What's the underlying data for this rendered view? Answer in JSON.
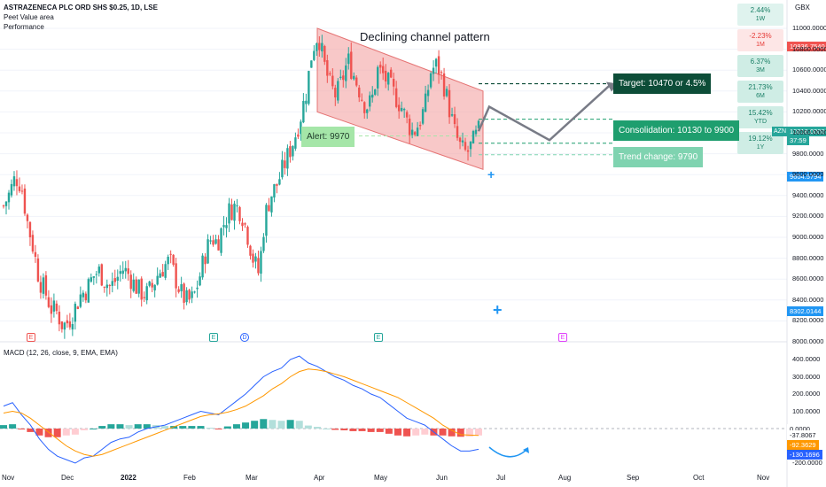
{
  "header": {
    "symbol": "ASTRAZENECA PLC ORD SHS $0.25, 1D, LSE",
    "indicator1": "Peet Value area",
    "indicator2": "Performance"
  },
  "currency": "GBX",
  "performance": [
    {
      "value": "2.44%",
      "period": "1W",
      "tone": "pos"
    },
    {
      "value": "-2.23%",
      "period": "1M",
      "tone": "neg"
    },
    {
      "value": "6.37%",
      "period": "3M",
      "tone": "pos"
    },
    {
      "value": "21.73%",
      "period": "6M",
      "tone": "pos"
    },
    {
      "value": "15.42%",
      "period": "YTD",
      "tone": "pos"
    },
    {
      "value": "19.12%",
      "period": "1Y",
      "tone": "pos"
    }
  ],
  "price_tags": {
    "red": "10836.7540",
    "symbol": "AZN",
    "last": "10016.0000",
    "countdown": "37:59",
    "blue1": "9604.5794",
    "blue2": "8302.0144"
  },
  "macd_tags": {
    "zero": "0.0000",
    "orange": "-37.8067",
    "red": "-92.3629",
    "blue": "-130.1696"
  },
  "annotations": {
    "channel_title": "Declining channel pattern",
    "target": "Target: 10470 or 4.5%",
    "consolidation": "Consolidation: 10130 to 9900",
    "trend_change": "Trend change: 9790",
    "alert": "Alert: 9970"
  },
  "macd_label": "MACD (12, 26, close, 9, EMA, EMA)",
  "events": [
    "E",
    "E",
    "D",
    "E",
    "E"
  ],
  "colors": {
    "up": "#26a69a",
    "down": "#ef5350",
    "macd": "#2962ff",
    "signal": "#ff9800",
    "channel": "#f4a3a3",
    "target_box": "#0d4d38",
    "consol_box": "#1e9e6e",
    "trend_box": "#7fd3b0",
    "alert_box": "#a5e6a8"
  },
  "chart_data": {
    "type": "candlestick",
    "price_axis": {
      "ticks": [
        8000,
        8200,
        8400,
        8600,
        8800,
        9000,
        9200,
        9400,
        9600,
        9800,
        10000,
        10200,
        10400,
        10600,
        10800,
        11000
      ],
      "labels": [
        "8000.0000",
        "8200.0000",
        "8400.0000",
        "8600.0000",
        "8800.0000",
        "9000.0000",
        "9200.0000",
        "9400.0000",
        "9600.0000",
        "9800.0000",
        "10000.0000",
        "10200.0000",
        "10400.0000",
        "10600.0000",
        "10800.0000",
        "11000.0000"
      ],
      "ylim": [
        8000,
        11200
      ]
    },
    "macd_axis": {
      "ticks": [
        -200,
        100,
        200,
        300,
        400
      ],
      "labels": [
        "-200.0000",
        "100.0000",
        "200.0000",
        "300.0000",
        "400.0000"
      ],
      "ylim": [
        -220,
        440
      ]
    },
    "x_labels": [
      "Nov",
      "Dec",
      "2022",
      "Feb",
      "Mar",
      "Apr",
      "May",
      "Jun",
      "Jul",
      "Aug",
      "Sep",
      "Oct",
      "Nov"
    ],
    "close_path": [
      9300,
      9420,
      9580,
      9500,
      9150,
      8900,
      8600,
      8480,
      8320,
      8280,
      8150,
      8200,
      8320,
      8450,
      8500,
      8620,
      8680,
      8590,
      8520,
      8600,
      8700,
      8650,
      8550,
      8480,
      8450,
      8520,
      8650,
      8720,
      8780,
      8600,
      8450,
      8380,
      8420,
      8620,
      8850,
      9000,
      8950,
      9120,
      9250,
      9300,
      9250,
      9050,
      8800,
      8650,
      9200,
      9400,
      9500,
      9650,
      9800,
      9950,
      10150,
      10400,
      10800,
      10950,
      10650,
      10450,
      10350,
      10500,
      10700,
      10550,
      10400,
      10250,
      10300,
      10600,
      10550,
      10450,
      10350,
      10250,
      10100,
      10000,
      10100,
      10250,
      10600,
      10650,
      10500,
      10250,
      10000,
      9850,
      9800,
      9900,
      10016
    ],
    "macd_line": [
      130,
      150,
      80,
      20,
      -60,
      -120,
      -160,
      -180,
      -200,
      -170,
      -160,
      -120,
      -80,
      -60,
      -50,
      -20,
      0,
      10,
      20,
      40,
      60,
      80,
      100,
      90,
      80,
      120,
      160,
      200,
      250,
      300,
      330,
      350,
      400,
      420,
      380,
      360,
      330,
      300,
      280,
      250,
      230,
      200,
      180,
      140,
      100,
      60,
      40,
      20,
      -20,
      -60,
      -100,
      -130,
      -130,
      -120
    ],
    "signal_line": [
      90,
      100,
      90,
      60,
      20,
      -20,
      -60,
      -100,
      -130,
      -150,
      -160,
      -150,
      -130,
      -110,
      -90,
      -70,
      -50,
      -30,
      -10,
      10,
      30,
      50,
      70,
      80,
      85,
      95,
      110,
      130,
      160,
      190,
      230,
      260,
      300,
      330,
      345,
      340,
      330,
      315,
      300,
      280,
      260,
      240,
      220,
      200,
      180,
      150,
      120,
      90,
      60,
      20,
      -10,
      -35,
      -38,
      -40
    ],
    "channel": {
      "upper_start": 11000,
      "upper_end": 10400,
      "lower_start": 10200,
      "lower_end": 9650
    },
    "levels": {
      "target": 10470,
      "consolidation_high": 10130,
      "consolidation_low": 9900,
      "trend_change": 9790,
      "alert": 9970
    }
  }
}
